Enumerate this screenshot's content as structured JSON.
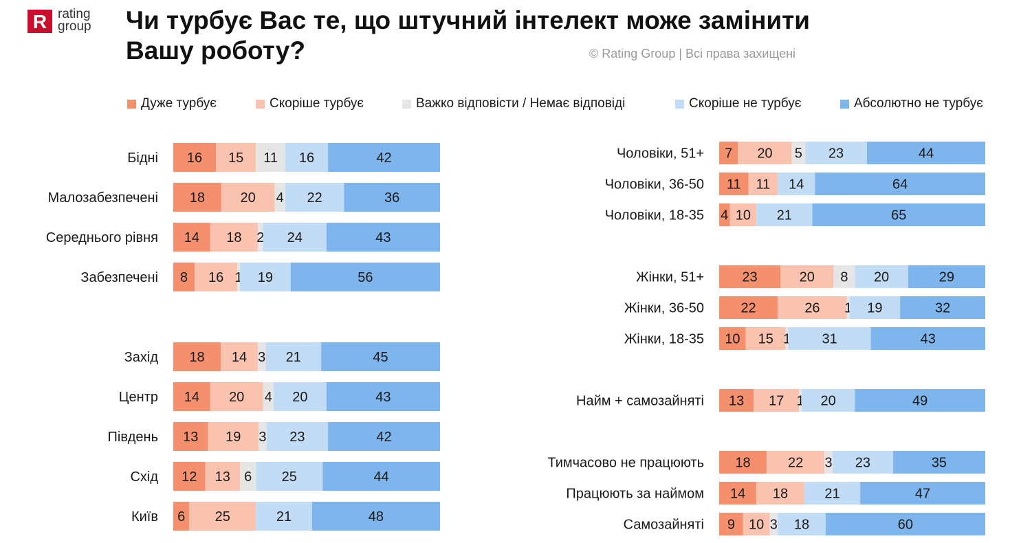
{
  "header": {
    "logo_line1": "rating",
    "logo_line2": "group",
    "logo_letter": "R",
    "title_line1": "Чи турбує Вас те, що штучний інтелект може замінити",
    "title_line2": "Вашу роботу?",
    "copyright": "© Rating Group | Всі права захищені"
  },
  "colors": {
    "very_worried": "#f4906e",
    "rather_worried": "#f9c3b0",
    "hard_to_say": "#e6e6e6",
    "rather_not_worried": "#c3dcf5",
    "not_worried_at_all": "#7db5ec",
    "logo_red": "#c8102e"
  },
  "chart_data": {
    "type": "bar",
    "orientation": "horizontal",
    "stacked": true,
    "legend": [
      "Дуже турбує",
      "Скоріше турбує",
      "Важко відповісти / Немає відповіді",
      "Скоріше не турбує",
      "Абсолютно не турбує"
    ],
    "legend_position": "top",
    "panels": [
      {
        "groups": [
          [
            {
              "category": "Бідні",
              "values": [
                16,
                15,
                11,
                16,
                42
              ]
            },
            {
              "category": "Малозабезпечені",
              "values": [
                18,
                20,
                4,
                22,
                36
              ]
            },
            {
              "category": "Середнього рівня",
              "values": [
                14,
                18,
                2,
                24,
                43
              ]
            },
            {
              "category": "Забезпечені",
              "values": [
                8,
                16,
                1,
                19,
                56
              ]
            }
          ],
          [
            {
              "category": "Захід",
              "values": [
                18,
                14,
                3,
                21,
                45
              ]
            },
            {
              "category": "Центр",
              "values": [
                14,
                20,
                4,
                20,
                43
              ]
            },
            {
              "category": "Південь",
              "values": [
                13,
                19,
                3,
                23,
                42
              ]
            },
            {
              "category": "Схід",
              "values": [
                12,
                13,
                6,
                25,
                44
              ]
            },
            {
              "category": "Київ",
              "values": [
                6,
                25,
                0,
                21,
                48
              ]
            }
          ]
        ]
      },
      {
        "groups": [
          [
            {
              "category": "Чоловіки, 51+",
              "values": [
                7,
                20,
                5,
                23,
                44
              ]
            },
            {
              "category": "Чоловіки, 36-50",
              "values": [
                11,
                11,
                0,
                14,
                64
              ]
            },
            {
              "category": "Чоловіки, 18-35",
              "values": [
                4,
                10,
                0,
                21,
                65
              ]
            }
          ],
          [
            {
              "category": "Жінки, 51+",
              "values": [
                23,
                20,
                8,
                20,
                29
              ]
            },
            {
              "category": "Жінки, 36-50",
              "values": [
                22,
                26,
                1,
                19,
                32
              ]
            },
            {
              "category": "Жінки, 18-35",
              "values": [
                10,
                15,
                1,
                31,
                43
              ]
            }
          ],
          [
            {
              "category": "Найм + самозайняті",
              "values": [
                13,
                17,
                1,
                20,
                49
              ]
            }
          ],
          [
            {
              "category": "Тимчасово не працюють",
              "values": [
                18,
                22,
                3,
                23,
                35
              ]
            },
            {
              "category": "Працюють за наймом",
              "values": [
                14,
                18,
                0,
                21,
                47
              ]
            },
            {
              "category": "Самозайняті",
              "values": [
                9,
                10,
                3,
                18,
                60
              ]
            }
          ]
        ]
      }
    ]
  }
}
